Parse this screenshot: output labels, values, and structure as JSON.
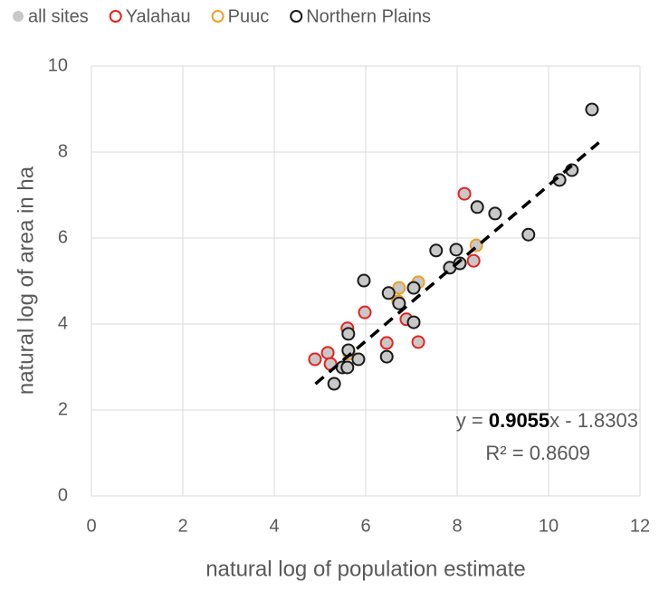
{
  "chart_data": {
    "type": "scatter",
    "xlabel": "natural log of population estimate",
    "ylabel": "natural log of area in ha",
    "xlim": [
      0,
      12
    ],
    "ylim": [
      0,
      10
    ],
    "xticks": [
      0,
      2,
      4,
      6,
      8,
      10,
      12
    ],
    "yticks": [
      0,
      2,
      4,
      6,
      8,
      10
    ],
    "grid": true,
    "legend": "top",
    "series": [
      {
        "name": "all sites",
        "color": "#c8c8c8"
      },
      {
        "name": "Yalahau",
        "color": "#e8211c",
        "x": [
          4.89,
          5.17,
          5.23,
          5.98,
          5.6,
          6.46,
          6.89,
          7.15,
          8.16,
          8.36
        ],
        "y": [
          3.18,
          3.33,
          3.07,
          4.27,
          3.9,
          3.56,
          4.11,
          3.58,
          7.03,
          5.47
        ]
      },
      {
        "name": "Puuc",
        "color": "#f0a020",
        "x": [
          5.64,
          6.73,
          6.71,
          7.15,
          8.42
        ],
        "y": [
          3.31,
          4.84,
          4.53,
          4.97,
          5.83
        ]
      },
      {
        "name": "Northern Plains",
        "color": "#1a1a1a",
        "x": [
          5.31,
          5.49,
          5.6,
          5.62,
          5.84,
          5.96,
          5.62,
          6.46,
          6.5,
          6.73,
          7.05,
          7.05,
          7.54,
          7.84,
          7.98,
          8.06,
          8.44,
          8.83,
          9.56,
          10.24,
          10.51,
          10.95
        ],
        "y": [
          2.61,
          2.99,
          2.99,
          3.39,
          3.18,
          5.01,
          3.77,
          3.24,
          4.72,
          4.48,
          4.84,
          4.04,
          5.71,
          5.31,
          5.73,
          5.41,
          6.72,
          6.57,
          6.08,
          7.35,
          7.58,
          8.99
        ]
      }
    ],
    "trendline": {
      "slope": 0.9055,
      "intercept": -1.8303,
      "x": [
        4.9,
        11.1
      ],
      "equation": [
        "y = ",
        "0.9055",
        "x - 1.8303"
      ],
      "r_squared": "R² = 0.8609"
    }
  }
}
